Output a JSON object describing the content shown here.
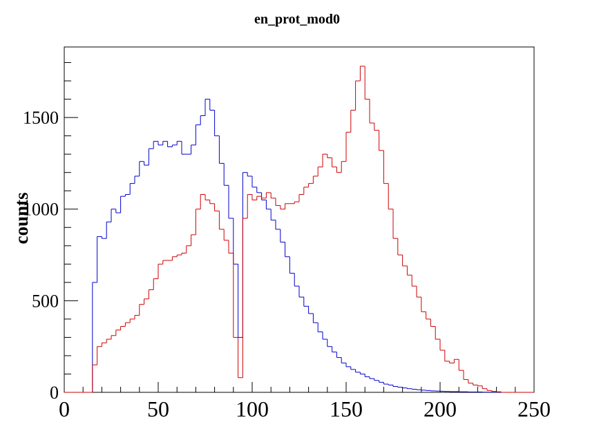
{
  "chart_data": {
    "type": "histogram",
    "title": "en_prot_mod0",
    "y_label": "counts",
    "bins": [
      0,
      2.5,
      5,
      7.5,
      10,
      12.5,
      15,
      17.5,
      20,
      22.5,
      25,
      27.5,
      30,
      32.5,
      35,
      37.5,
      40,
      42.5,
      45,
      47.5,
      50,
      52.5,
      55,
      57.5,
      60,
      62.5,
      65,
      67.5,
      70,
      72.5,
      75,
      77.5,
      80,
      82.5,
      85,
      87.5,
      90,
      92.5,
      95,
      97.5,
      100,
      102.5,
      105,
      107.5,
      110,
      112.5,
      115,
      117.5,
      120,
      122.5,
      125,
      127.5,
      130,
      132.5,
      135,
      137.5,
      140,
      142.5,
      145,
      147.5,
      150,
      152.5,
      155,
      157.5,
      160,
      162.5,
      165,
      167.5,
      170,
      172.5,
      175,
      177.5,
      180,
      182.5,
      185,
      187.5,
      190,
      192.5,
      195,
      197.5,
      200,
      202.5,
      205,
      207.5,
      210,
      212.5,
      215,
      217.5,
      220,
      222.5,
      225,
      227.5,
      230,
      232.5,
      235,
      237.5,
      240,
      242.5,
      245,
      247.5,
      250
    ],
    "series": [
      {
        "color": "#0000cc",
        "values": [
          0,
          0,
          0,
          0,
          0,
          0,
          600,
          850,
          840,
          930,
          1000,
          980,
          1070,
          1080,
          1140,
          1180,
          1260,
          1240,
          1330,
          1370,
          1350,
          1370,
          1340,
          1350,
          1370,
          1300,
          1300,
          1350,
          1460,
          1510,
          1600,
          1540,
          1400,
          1250,
          1130,
          950,
          700,
          300,
          1200,
          1180,
          1120,
          1090,
          1050,
          1000,
          940,
          890,
          820,
          740,
          650,
          580,
          520,
          470,
          430,
          380,
          330,
          290,
          250,
          220,
          190,
          160,
          140,
          125,
          110,
          100,
          85,
          75,
          65,
          55,
          45,
          40,
          32,
          28,
          24,
          20,
          17,
          14,
          12,
          10,
          8,
          7,
          6,
          5,
          4,
          4,
          3,
          3,
          2,
          2,
          2,
          1,
          1,
          1,
          1,
          0,
          0,
          0,
          0,
          0,
          0,
          0
        ]
      },
      {
        "color": "#cc0000",
        "values": [
          0,
          0,
          0,
          0,
          0,
          0,
          150,
          250,
          270,
          290,
          310,
          340,
          360,
          380,
          400,
          420,
          480,
          510,
          560,
          620,
          700,
          720,
          720,
          740,
          750,
          760,
          800,
          860,
          1000,
          1080,
          1050,
          1030,
          990,
          890,
          830,
          760,
          300,
          80,
          950,
          1080,
          1050,
          1070,
          1060,
          1090,
          1060,
          1020,
          1000,
          1030,
          1030,
          1040,
          1080,
          1120,
          1140,
          1180,
          1230,
          1300,
          1280,
          1230,
          1200,
          1260,
          1420,
          1540,
          1700,
          1780,
          1600,
          1470,
          1430,
          1320,
          1140,
          1000,
          840,
          750,
          690,
          640,
          580,
          520,
          440,
          400,
          360,
          290,
          230,
          170,
          160,
          180,
          120,
          70,
          50,
          40,
          35,
          20,
          10,
          5,
          3,
          0,
          0,
          0,
          0,
          0,
          0,
          0
        ]
      }
    ],
    "xlim": [
      0,
      250
    ],
    "xticks": [
      0,
      50,
      100,
      150,
      200,
      250
    ],
    "ylim": [
      0,
      1885
    ],
    "yticks": [
      0,
      500,
      1000,
      1500
    ]
  }
}
